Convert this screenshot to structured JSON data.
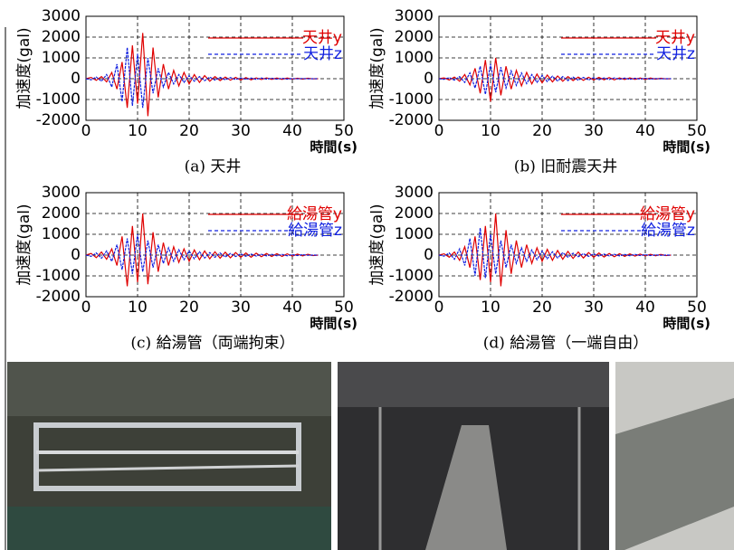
{
  "chart_data": [
    {
      "type": "line",
      "title": "(a) 天井",
      "x_label": "時間(s)",
      "y_label": "加速度(gal)",
      "x": [
        0,
        1,
        2,
        3,
        4,
        5,
        6,
        7,
        8,
        9,
        10,
        11,
        12,
        13,
        14,
        15,
        16,
        17,
        18,
        19,
        20,
        21,
        22,
        23,
        24,
        25,
        26,
        27,
        28,
        29,
        30,
        31,
        32,
        33,
        34,
        35,
        36,
        37,
        38,
        39,
        40,
        41,
        42,
        43,
        44,
        45
      ],
      "series": [
        {
          "name": "天井y",
          "color": "#e00000",
          "linestyle": "solid",
          "values": [
            0,
            60,
            -80,
            100,
            -150,
            300,
            -500,
            800,
            -1400,
            1600,
            -1200,
            2200,
            -1800,
            1500,
            -900,
            700,
            -500,
            400,
            -350,
            300,
            -250,
            200,
            -180,
            150,
            -120,
            100,
            -90,
            80,
            -70,
            60,
            -60,
            50,
            -50,
            40,
            -40,
            40,
            -30,
            30,
            -30,
            30,
            -20,
            20,
            -20,
            20,
            -10,
            0
          ]
        },
        {
          "name": "天井z",
          "color": "#1020e0",
          "linestyle": "dashed",
          "values": [
            0,
            -50,
            80,
            -120,
            200,
            -400,
            700,
            -1100,
            1500,
            -1300,
            1200,
            -1400,
            1000,
            -700,
            500,
            -400,
            300,
            -250,
            200,
            -180,
            150,
            -120,
            100,
            -90,
            80,
            -70,
            60,
            -50,
            50,
            -40,
            40,
            -30,
            30,
            -30,
            30,
            -20,
            20,
            -20,
            20,
            -20,
            10,
            -10,
            10,
            -10,
            0,
            0
          ]
        }
      ],
      "xlim": [
        0,
        50
      ],
      "ylim": [
        -2000,
        3000
      ],
      "xticks": [
        0,
        10,
        20,
        30,
        40,
        50
      ],
      "yticks": [
        3000,
        2000,
        1000,
        0,
        -1000,
        -2000
      ],
      "grid": true
    },
    {
      "type": "line",
      "title": "(b) 旧耐震天井",
      "x_label": "時間(s)",
      "y_label": "加速度(gal)",
      "x": [
        0,
        1,
        2,
        3,
        4,
        5,
        6,
        7,
        8,
        9,
        10,
        11,
        12,
        13,
        14,
        15,
        16,
        17,
        18,
        19,
        20,
        21,
        22,
        23,
        24,
        25,
        26,
        27,
        28,
        29,
        30,
        31,
        32,
        33,
        34,
        35,
        36,
        37,
        38,
        39,
        40,
        41,
        42,
        43,
        44,
        45
      ],
      "series": [
        {
          "name": "天井y",
          "color": "#e00000",
          "linestyle": "solid",
          "values": [
            0,
            40,
            -60,
            80,
            -120,
            200,
            -300,
            500,
            -700,
            900,
            -1100,
            1000,
            -800,
            600,
            -500,
            400,
            -350,
            300,
            -250,
            220,
            -200,
            180,
            -150,
            130,
            -120,
            100,
            -90,
            80,
            -80,
            70,
            -60,
            60,
            -50,
            50,
            -50,
            40,
            -40,
            40,
            -30,
            30,
            -30,
            30,
            -20,
            20,
            -10,
            0
          ]
        },
        {
          "name": "天井z",
          "color": "#1020e0",
          "linestyle": "dashed",
          "values": [
            0,
            -30,
            50,
            -70,
            100,
            -180,
            280,
            -450,
            600,
            -750,
            700,
            -650,
            550,
            -450,
            380,
            -320,
            280,
            -240,
            200,
            -180,
            160,
            -140,
            120,
            -110,
            100,
            -90,
            80,
            -70,
            60,
            -60,
            50,
            -50,
            40,
            -40,
            40,
            -30,
            30,
            -30,
            20,
            -20,
            20,
            -20,
            10,
            -10,
            0,
            0
          ]
        }
      ],
      "xlim": [
        0,
        50
      ],
      "ylim": [
        -2000,
        3000
      ],
      "xticks": [
        0,
        10,
        20,
        30,
        40,
        50
      ],
      "yticks": [
        3000,
        2000,
        1000,
        0,
        -1000,
        -2000
      ],
      "grid": true
    },
    {
      "type": "line",
      "title": "(c) 給湯管（両端拘束）",
      "x_label": "時間(s)",
      "y_label": "加速度(gal)",
      "x": [
        0,
        1,
        2,
        3,
        4,
        5,
        6,
        7,
        8,
        9,
        10,
        11,
        12,
        13,
        14,
        15,
        16,
        17,
        18,
        19,
        20,
        21,
        22,
        23,
        24,
        25,
        26,
        27,
        28,
        29,
        30,
        31,
        32,
        33,
        34,
        35,
        36,
        37,
        38,
        39,
        40,
        41,
        42,
        43,
        44,
        45
      ],
      "series": [
        {
          "name": "給湯管y",
          "color": "#e00000",
          "linestyle": "solid",
          "values": [
            0,
            80,
            -120,
            150,
            -200,
            300,
            -500,
            900,
            -1500,
            1400,
            -1300,
            2000,
            -1400,
            1100,
            -800,
            600,
            -500,
            400,
            -350,
            300,
            -300,
            250,
            -220,
            200,
            -180,
            160,
            -150,
            140,
            -130,
            120,
            -110,
            100,
            -100,
            90,
            -80,
            80,
            -70,
            70,
            -60,
            60,
            -50,
            50,
            -40,
            40,
            -20,
            0
          ]
        },
        {
          "name": "給湯管z",
          "color": "#1020e0",
          "linestyle": "dashed",
          "values": [
            0,
            -60,
            100,
            -150,
            200,
            -300,
            500,
            -700,
            800,
            -900,
            1000,
            -800,
            700,
            -600,
            500,
            -400,
            350,
            -300,
            260,
            -220,
            200,
            -180,
            160,
            -140,
            120,
            -110,
            100,
            -90,
            80,
            -70,
            60,
            -60,
            50,
            -50,
            40,
            -40,
            40,
            -30,
            30,
            -30,
            20,
            -20,
            20,
            -10,
            0,
            0
          ]
        }
      ],
      "xlim": [
        0,
        50
      ],
      "ylim": [
        -2000,
        3000
      ],
      "xticks": [
        0,
        10,
        20,
        30,
        40,
        50
      ],
      "yticks": [
        3000,
        2000,
        1000,
        0,
        -1000,
        -2000
      ],
      "grid": true
    },
    {
      "type": "line",
      "title": "(d) 給湯管（一端自由）",
      "x_label": "時間(s)",
      "y_label": "加速度(gal)",
      "x": [
        0,
        1,
        2,
        3,
        4,
        5,
        6,
        7,
        8,
        9,
        10,
        11,
        12,
        13,
        14,
        15,
        16,
        17,
        18,
        19,
        20,
        21,
        22,
        23,
        24,
        25,
        26,
        27,
        28,
        29,
        30,
        31,
        32,
        33,
        34,
        35,
        36,
        37,
        38,
        39,
        40,
        41,
        42,
        43,
        44,
        45
      ],
      "series": [
        {
          "name": "給湯管y",
          "color": "#e00000",
          "linestyle": "solid",
          "values": [
            0,
            60,
            -100,
            150,
            -250,
            400,
            -600,
            900,
            -1200,
            1400,
            -1300,
            2000,
            -1500,
            1200,
            -900,
            700,
            -600,
            500,
            -400,
            350,
            -300,
            280,
            -250,
            220,
            -200,
            180,
            -160,
            150,
            -140,
            120,
            -110,
            100,
            -90,
            80,
            -80,
            70,
            -60,
            60,
            -50,
            50,
            -40,
            40,
            -30,
            30,
            -20,
            0
          ]
        },
        {
          "name": "給湯管z",
          "color": "#1020e0",
          "linestyle": "dashed",
          "values": [
            0,
            -50,
            100,
            -200,
            300,
            -500,
            800,
            -1000,
            1300,
            -1100,
            1000,
            -900,
            700,
            -600,
            500,
            -400,
            350,
            -300,
            250,
            -220,
            200,
            -180,
            160,
            -140,
            120,
            -100,
            90,
            -80,
            70,
            -60,
            60,
            -50,
            50,
            -40,
            40,
            -40,
            30,
            -30,
            30,
            -20,
            20,
            -20,
            10,
            -10,
            0,
            0
          ]
        }
      ],
      "xlim": [
        0,
        50
      ],
      "ylim": [
        -2000,
        3000
      ],
      "xticks": [
        0,
        10,
        20,
        30,
        40,
        50
      ],
      "yticks": [
        3000,
        2000,
        1000,
        0,
        -1000,
        -2000
      ],
      "grid": true
    }
  ]
}
